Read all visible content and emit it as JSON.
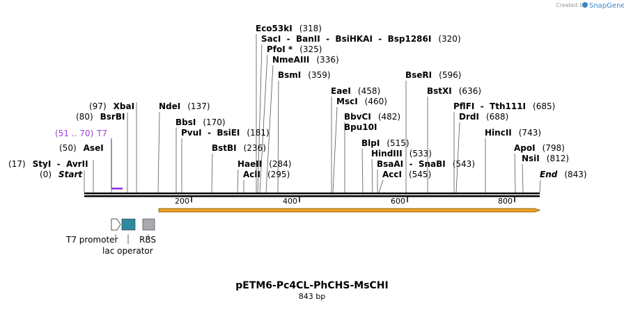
{
  "watermark": {
    "prefix": "Created by",
    "brand": "SnapGene"
  },
  "sites": [
    {
      "name": "Eco53kI",
      "position": "(318)"
    },
    {
      "name": "SacI  -  BanII  -  BsiHKAI  -  Bsp1286I",
      "position": "(320)"
    },
    {
      "name": "PfoI *",
      "position": "(325)"
    },
    {
      "name": "NmeAIII",
      "position": "(336)"
    },
    {
      "name": "BsmI",
      "position": "(359)"
    },
    {
      "name": "EaeI",
      "position": "(458)"
    },
    {
      "name": "MscI",
      "position": "(460)"
    },
    {
      "name": "BbvCI",
      "position": "(482)"
    },
    {
      "name": "Bpu10I"
    },
    {
      "name": "BlpI",
      "position": "(515)"
    },
    {
      "name": "HindIII",
      "position": "(533)"
    },
    {
      "name": "BsaAI  -  SnaBI",
      "position": "(543)"
    },
    {
      "name": "AccI",
      "position": "(545)"
    },
    {
      "name": "BseRI",
      "position": "(596)"
    },
    {
      "name": "BstXI",
      "position": "(636)"
    },
    {
      "name": "PflFI  -  Tth111I",
      "position": "(685)"
    },
    {
      "name": "DrdI",
      "position": "(688)"
    },
    {
      "name": "HincII",
      "position": "(743)"
    },
    {
      "name": "ApoI",
      "position": "(798)"
    },
    {
      "name": "NsiI",
      "position": "(812)"
    },
    {
      "name": "End",
      "position": "(843)"
    },
    {
      "name": "HaeII",
      "position": "(284)"
    },
    {
      "name": "AclI",
      "position": "(295)"
    },
    {
      "name": "BstBI",
      "position": "(236)"
    },
    {
      "name": "BbsI",
      "position": "(170)"
    },
    {
      "name": "PvuI  -  BsiEI",
      "position": "(181)"
    },
    {
      "name": "NdeI",
      "position": "(137)"
    },
    {
      "name": "XbaI",
      "position": "(97)"
    },
    {
      "name": "BsrBI",
      "position": "(80)"
    },
    {
      "name": "AseI",
      "position": "(50)"
    },
    {
      "name": "StyI  -  AvrII",
      "position": "(17)"
    },
    {
      "name": "Start",
      "position": "(0)"
    }
  ],
  "feature": {
    "name": "T7",
    "range": "(51 .. 70)"
  },
  "ruler": [
    "200",
    "400",
    "600",
    "800"
  ],
  "legend": [
    "T7 promoter",
    "lac operator",
    "RBS"
  ],
  "title": "pETM6-Pc4CL-PhCHS-MsCHI",
  "length": "843 bp"
}
